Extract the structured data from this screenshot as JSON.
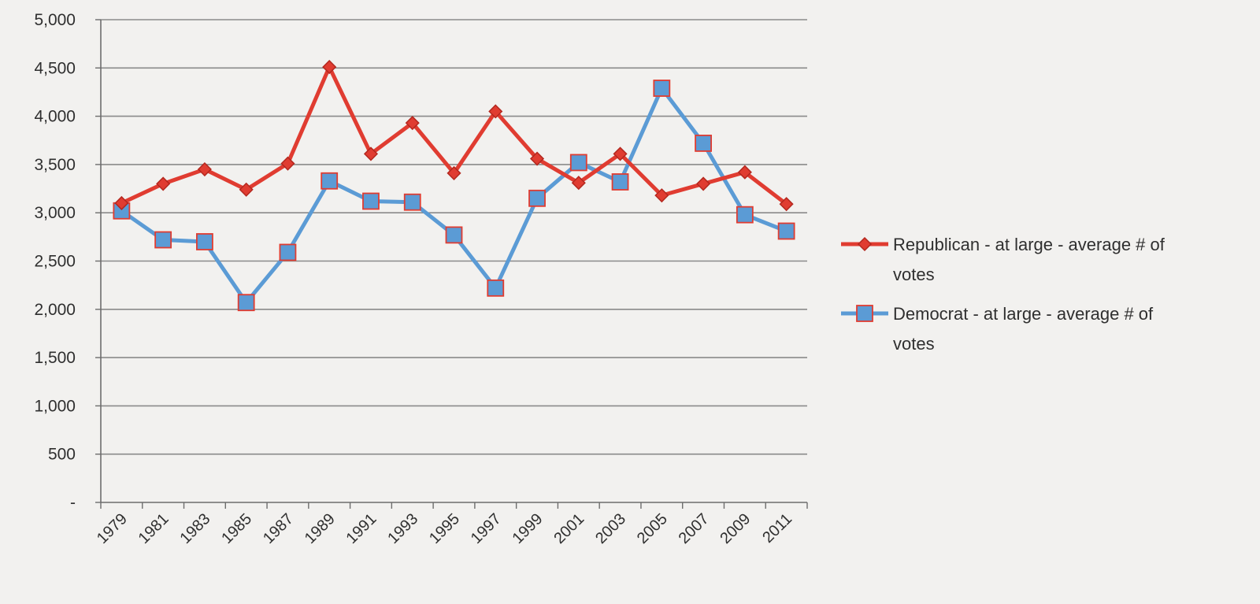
{
  "chart_data": {
    "type": "line",
    "title": "",
    "xlabel": "",
    "ylabel": "",
    "ylim": [
      0,
      5000
    ],
    "yticks": [
      "-",
      "500",
      "1,000",
      "1,500",
      "2,000",
      "2,500",
      "3,000",
      "3,500",
      "4,000",
      "4,500",
      "5,000"
    ],
    "ytick_values": [
      0,
      500,
      1000,
      1500,
      2000,
      2500,
      3000,
      3500,
      4000,
      4500,
      5000
    ],
    "grid": true,
    "legend_position": "right",
    "categories": [
      "1979",
      "1981",
      "1983",
      "1985",
      "1987",
      "1989",
      "1991",
      "1993",
      "1995",
      "1997",
      "1999",
      "2001",
      "2003",
      "2005",
      "2007",
      "2009",
      "2011"
    ],
    "series": [
      {
        "name": "Republican - at large - average # of votes",
        "legend_lines": [
          "Republican - at large - average # of",
          "votes"
        ],
        "color": "#e03c31",
        "marker": "diamond",
        "marker_color": "#e03c31",
        "values": [
          3100,
          3300,
          3450,
          3240,
          3510,
          4510,
          3610,
          3930,
          3410,
          4050,
          3560,
          3310,
          3610,
          3180,
          3300,
          3420,
          3090
        ]
      },
      {
        "name": "Democrat - at large - average # of votes",
        "legend_lines": [
          "Democrat - at large - average # of",
          "votes"
        ],
        "color": "#5b9bd5",
        "marker": "square",
        "marker_color": "#5b9bd5",
        "marker_edge": "#e03c31",
        "values": [
          3020,
          2720,
          2700,
          2070,
          2590,
          3330,
          3120,
          3110,
          2770,
          2220,
          3150,
          3520,
          3320,
          4290,
          3720,
          2980,
          2810
        ]
      }
    ]
  }
}
